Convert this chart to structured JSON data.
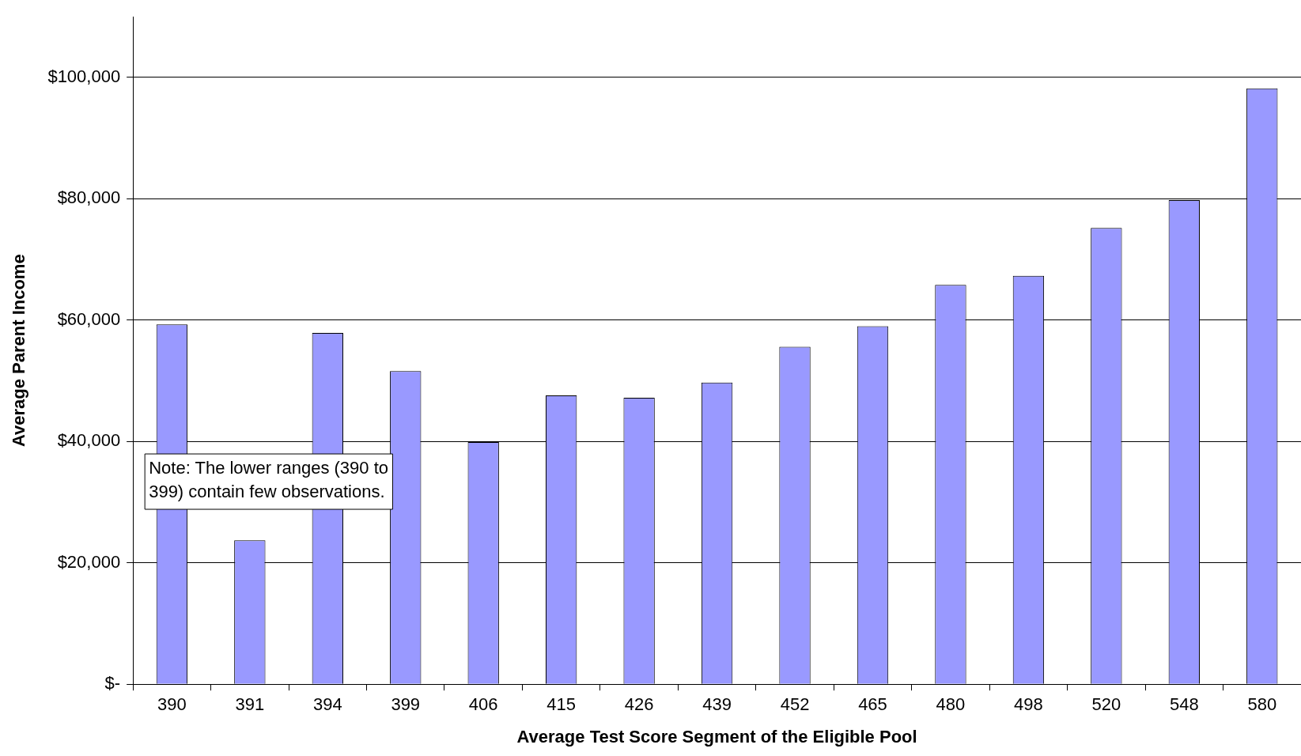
{
  "chart_data": {
    "type": "bar",
    "xlabel": "Average Test Score Segment of the Eligible Pool",
    "ylabel": "Average Parent Income",
    "categories": [
      "390",
      "391",
      "394",
      "399",
      "406",
      "415",
      "426",
      "439",
      "452",
      "465",
      "480",
      "498",
      "520",
      "548",
      "580"
    ],
    "values": [
      59300,
      23700,
      57900,
      51600,
      39900,
      47600,
      47200,
      49700,
      55600,
      59000,
      65800,
      67300,
      75200,
      79800,
      98200
    ],
    "color": "#9999ff",
    "ylim": [
      0,
      110000
    ],
    "yticks": [
      {
        "value": 0,
        "label": "$-"
      },
      {
        "value": 20000,
        "label": "$20,000"
      },
      {
        "value": 40000,
        "label": "$40,000"
      },
      {
        "value": 60000,
        "label": "$60,000"
      },
      {
        "value": 80000,
        "label": "$80,000"
      },
      {
        "value": 100000,
        "label": "$100,000"
      }
    ],
    "grid": "y",
    "legend": false,
    "annotations": [
      "Note: The lower ranges (390 to 399) contain few observations."
    ]
  }
}
